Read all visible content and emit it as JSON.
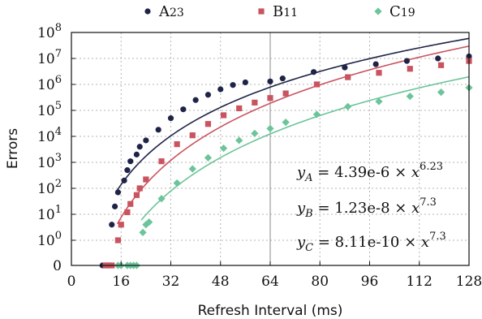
{
  "chart_data": {
    "type": "scatter",
    "xlabel": "Refresh Interval (ms)",
    "ylabel": "Errors",
    "x_ticks": [
      "0",
      "16",
      "32",
      "48",
      "64",
      "80",
      "96",
      "112",
      "128"
    ],
    "xlim": [
      0,
      128
    ],
    "y_scale": "symlog",
    "y_ticks": [
      {
        "value": 0,
        "base": "0",
        "exp": ""
      },
      {
        "value": 1,
        "base": "10",
        "exp": "0"
      },
      {
        "value": 10,
        "base": "10",
        "exp": "1"
      },
      {
        "value": 100,
        "base": "10",
        "exp": "2"
      },
      {
        "value": 1000,
        "base": "10",
        "exp": "3"
      },
      {
        "value": 10000,
        "base": "10",
        "exp": "4"
      },
      {
        "value": 100000,
        "base": "10",
        "exp": "5"
      },
      {
        "value": 1000000,
        "base": "10",
        "exp": "6"
      },
      {
        "value": 10000000,
        "base": "10",
        "exp": "7"
      },
      {
        "value": 100000000,
        "base": "10",
        "exp": "8"
      }
    ],
    "grid": true,
    "reference_line_x": 64,
    "legend_position": "top",
    "series": [
      {
        "name_base": "A",
        "name_sub": "23",
        "color": "#1f2447",
        "marker": "circle",
        "points": [
          [
            10,
            0
          ],
          [
            11,
            0
          ],
          [
            13,
            4
          ],
          [
            14,
            20
          ],
          [
            15,
            70
          ],
          [
            17,
            200
          ],
          [
            18,
            500
          ],
          [
            19,
            1100
          ],
          [
            21,
            2000
          ],
          [
            22,
            4000
          ],
          [
            24,
            7000
          ],
          [
            28,
            18000
          ],
          [
            32,
            50000
          ],
          [
            36,
            110000
          ],
          [
            40,
            250000
          ],
          [
            44,
            400000
          ],
          [
            48,
            650000
          ],
          [
            52,
            950000
          ],
          [
            56,
            1200000
          ],
          [
            64,
            1300000
          ],
          [
            68,
            1700000
          ],
          [
            78,
            3000000
          ],
          [
            88,
            4500000
          ],
          [
            98,
            6000000
          ],
          [
            108,
            8000000
          ],
          [
            118,
            10000000
          ],
          [
            128,
            12000000
          ]
        ],
        "fit": {
          "a": 4.39e-06,
          "b": 6.23,
          "x_from": 14.5,
          "x_to": 128
        }
      },
      {
        "name_base": "B",
        "name_sub": "11",
        "color": "#c9545f",
        "marker": "square",
        "points": [
          [
            11,
            0
          ],
          [
            12,
            0
          ],
          [
            13,
            0
          ],
          [
            15,
            1
          ],
          [
            16,
            4
          ],
          [
            18,
            12
          ],
          [
            19,
            25
          ],
          [
            21,
            55
          ],
          [
            22,
            100
          ],
          [
            24,
            220
          ],
          [
            29,
            1100
          ],
          [
            34,
            5000
          ],
          [
            39,
            11000
          ],
          [
            44,
            30000
          ],
          [
            49,
            65000
          ],
          [
            54,
            120000
          ],
          [
            59,
            200000
          ],
          [
            64,
            300000
          ],
          [
            69,
            450000
          ],
          [
            79,
            1000000
          ],
          [
            89,
            1900000
          ],
          [
            99,
            2800000
          ],
          [
            109,
            4000000
          ],
          [
            119,
            5500000
          ],
          [
            128,
            8000000
          ]
        ],
        "fit": {
          "a": 1.23e-08,
          "b": 7.3,
          "x_from": 14.8,
          "x_to": 128
        }
      },
      {
        "name_base": "C",
        "name_sub": "19",
        "color": "#6cc49a",
        "marker": "diamond",
        "points": [
          [
            15,
            0
          ],
          [
            16,
            0
          ],
          [
            18,
            0
          ],
          [
            19,
            0
          ],
          [
            20,
            0
          ],
          [
            21,
            0
          ],
          [
            23,
            2
          ],
          [
            24,
            4
          ],
          [
            25,
            5
          ],
          [
            29,
            40
          ],
          [
            34,
            160
          ],
          [
            39,
            560
          ],
          [
            44,
            1500
          ],
          [
            49,
            3500
          ],
          [
            54,
            7000
          ],
          [
            59,
            13000
          ],
          [
            64,
            20000
          ],
          [
            69,
            35000
          ],
          [
            79,
            70000
          ],
          [
            89,
            140000
          ],
          [
            99,
            220000
          ],
          [
            109,
            350000
          ],
          [
            119,
            500000
          ],
          [
            128,
            750000
          ]
        ],
        "fit": {
          "a": 8.11e-10,
          "b": 7.3,
          "x_from": 22.5,
          "x_to": 128
        }
      }
    ],
    "annotations": [
      {
        "var": "y",
        "sub": "A",
        "eq": " = 4.39e-6 × ",
        "xvar": "x",
        "exp": "6.23"
      },
      {
        "var": "y",
        "sub": "B",
        "eq": " = 1.23e-8 × ",
        "xvar": "x",
        "exp": "7.3"
      },
      {
        "var": "y",
        "sub": "C",
        "eq": " = 8.11e-10 × ",
        "xvar": "x",
        "exp": "7.3"
      }
    ]
  }
}
